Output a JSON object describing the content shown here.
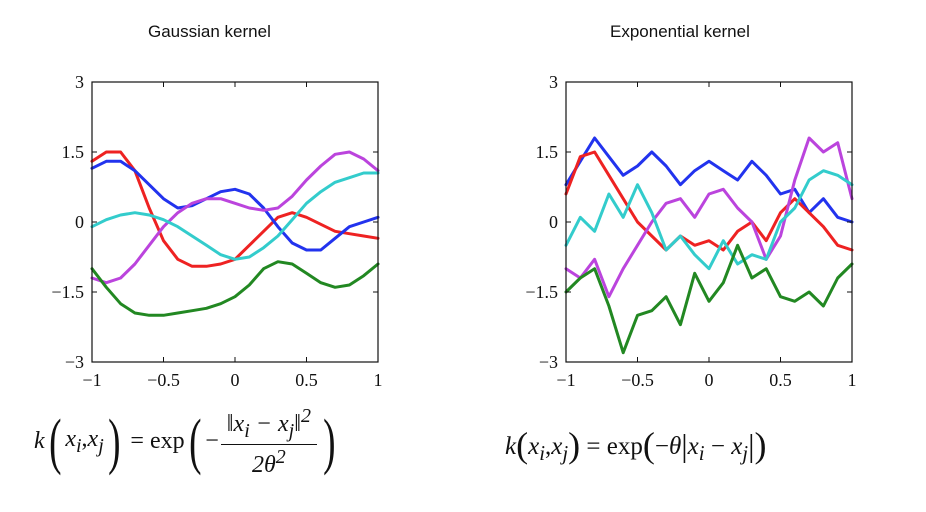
{
  "chart_data": [
    {
      "type": "line",
      "title": "Gaussian kernel",
      "xlim": [
        -1,
        1
      ],
      "ylim": [
        -3,
        3
      ],
      "xticks": [
        "−1",
        "−0.5",
        "0",
        "0.5",
        "1"
      ],
      "yticks": [
        "3",
        "1.5",
        "0",
        "−1.5",
        "−3"
      ],
      "formula": "k(x_i, x_j) = exp(−‖x_i − x_j‖² / 2θ²)",
      "series": [
        {
          "name": "red",
          "color": "#ee2222",
          "x": [
            -1,
            -0.9,
            -0.8,
            -0.7,
            -0.6,
            -0.5,
            -0.4,
            -0.3,
            -0.2,
            -0.1,
            0,
            0.1,
            0.2,
            0.3,
            0.4,
            0.5,
            0.6,
            0.7,
            0.8,
            0.9,
            1
          ],
          "y": [
            1.3,
            1.5,
            1.5,
            1.1,
            0.3,
            -0.4,
            -0.8,
            -0.95,
            -0.95,
            -0.9,
            -0.8,
            -0.5,
            -0.2,
            0.1,
            0.2,
            0.1,
            -0.05,
            -0.2,
            -0.25,
            -0.3,
            -0.35
          ]
        },
        {
          "name": "blue",
          "color": "#2233ee",
          "x": [
            -1,
            -0.9,
            -0.8,
            -0.7,
            -0.6,
            -0.5,
            -0.4,
            -0.3,
            -0.2,
            -0.1,
            0,
            0.1,
            0.2,
            0.3,
            0.4,
            0.5,
            0.6,
            0.7,
            0.8,
            0.9,
            1
          ],
          "y": [
            1.15,
            1.3,
            1.3,
            1.1,
            0.8,
            0.5,
            0.3,
            0.35,
            0.5,
            0.65,
            0.7,
            0.6,
            0.3,
            -0.1,
            -0.45,
            -0.6,
            -0.6,
            -0.35,
            -0.1,
            0.0,
            0.1
          ]
        },
        {
          "name": "magenta",
          "color": "#bb44dd",
          "x": [
            -1,
            -0.9,
            -0.8,
            -0.7,
            -0.6,
            -0.5,
            -0.4,
            -0.3,
            -0.2,
            -0.1,
            0,
            0.1,
            0.2,
            0.3,
            0.4,
            0.5,
            0.6,
            0.7,
            0.8,
            0.9,
            1
          ],
          "y": [
            -1.2,
            -1.3,
            -1.2,
            -0.9,
            -0.5,
            -0.1,
            0.2,
            0.4,
            0.5,
            0.5,
            0.4,
            0.3,
            0.25,
            0.3,
            0.55,
            0.9,
            1.2,
            1.45,
            1.5,
            1.35,
            1.1
          ]
        },
        {
          "name": "cyan",
          "color": "#33cccc",
          "x": [
            -1,
            -0.9,
            -0.8,
            -0.7,
            -0.6,
            -0.5,
            -0.4,
            -0.3,
            -0.2,
            -0.1,
            0,
            0.1,
            0.2,
            0.3,
            0.4,
            0.5,
            0.6,
            0.7,
            0.8,
            0.9,
            1
          ],
          "y": [
            -0.1,
            0.05,
            0.15,
            0.2,
            0.15,
            0.05,
            -0.1,
            -0.3,
            -0.5,
            -0.7,
            -0.8,
            -0.75,
            -0.55,
            -0.3,
            0.05,
            0.4,
            0.65,
            0.85,
            0.95,
            1.05,
            1.05
          ]
        },
        {
          "name": "green",
          "color": "#228822",
          "x": [
            -1,
            -0.9,
            -0.8,
            -0.7,
            -0.6,
            -0.5,
            -0.4,
            -0.3,
            -0.2,
            -0.1,
            0,
            0.1,
            0.2,
            0.3,
            0.4,
            0.5,
            0.6,
            0.7,
            0.8,
            0.9,
            1
          ],
          "y": [
            -1.0,
            -1.4,
            -1.75,
            -1.95,
            -2.0,
            -2.0,
            -1.95,
            -1.9,
            -1.85,
            -1.75,
            -1.6,
            -1.35,
            -1.0,
            -0.85,
            -0.9,
            -1.1,
            -1.3,
            -1.4,
            -1.35,
            -1.15,
            -0.9
          ]
        }
      ]
    },
    {
      "type": "line",
      "title": "Exponential kernel",
      "xlim": [
        -1,
        1
      ],
      "ylim": [
        -3,
        3
      ],
      "xticks": [
        "−1",
        "−0.5",
        "0",
        "0.5",
        "1"
      ],
      "yticks": [
        "3",
        "1.5",
        "0",
        "−1.5",
        "−3"
      ],
      "formula": "k(x_i, x_j) = exp(−θ|x_i − x_j|)",
      "series": [
        {
          "name": "blue",
          "color": "#2233ee",
          "x": [
            -1,
            -0.9,
            -0.8,
            -0.7,
            -0.6,
            -0.5,
            -0.4,
            -0.3,
            -0.2,
            -0.1,
            0,
            0.1,
            0.2,
            0.3,
            0.4,
            0.5,
            0.6,
            0.7,
            0.8,
            0.9,
            1
          ],
          "y": [
            0.8,
            1.3,
            1.8,
            1.4,
            1.0,
            1.2,
            1.5,
            1.2,
            0.8,
            1.1,
            1.3,
            1.1,
            0.9,
            1.3,
            1.0,
            0.6,
            0.7,
            0.2,
            0.5,
            0.1,
            0.0
          ]
        },
        {
          "name": "red",
          "color": "#ee2222",
          "x": [
            -1,
            -0.9,
            -0.8,
            -0.7,
            -0.6,
            -0.5,
            -0.4,
            -0.3,
            -0.2,
            -0.1,
            0,
            0.1,
            0.2,
            0.3,
            0.4,
            0.5,
            0.6,
            0.7,
            0.8,
            0.9,
            1
          ],
          "y": [
            0.6,
            1.4,
            1.5,
            1.0,
            0.5,
            0.0,
            -0.3,
            -0.6,
            -0.3,
            -0.5,
            -0.4,
            -0.6,
            -0.2,
            0.0,
            -0.4,
            0.2,
            0.5,
            0.2,
            -0.1,
            -0.5,
            -0.6
          ]
        },
        {
          "name": "magenta",
          "color": "#bb44dd",
          "x": [
            -1,
            -0.9,
            -0.8,
            -0.7,
            -0.6,
            -0.5,
            -0.4,
            -0.3,
            -0.2,
            -0.1,
            0,
            0.1,
            0.2,
            0.3,
            0.4,
            0.5,
            0.6,
            0.7,
            0.8,
            0.9,
            1
          ],
          "y": [
            -1.0,
            -1.2,
            -0.8,
            -1.6,
            -1.0,
            -0.5,
            0.0,
            0.4,
            0.5,
            0.1,
            0.6,
            0.7,
            0.3,
            0.0,
            -0.8,
            -0.3,
            0.9,
            1.8,
            1.5,
            1.7,
            0.5
          ]
        },
        {
          "name": "cyan",
          "color": "#33cccc",
          "x": [
            -1,
            -0.9,
            -0.8,
            -0.7,
            -0.6,
            -0.5,
            -0.4,
            -0.3,
            -0.2,
            -0.1,
            0,
            0.1,
            0.2,
            0.3,
            0.4,
            0.5,
            0.6,
            0.7,
            0.8,
            0.9,
            1
          ],
          "y": [
            -0.5,
            0.1,
            -0.2,
            0.6,
            0.1,
            0.8,
            0.2,
            -0.6,
            -0.3,
            -0.7,
            -1.0,
            -0.4,
            -0.9,
            -0.7,
            -0.8,
            0.0,
            0.3,
            0.9,
            1.1,
            1.0,
            0.8
          ]
        },
        {
          "name": "green",
          "color": "#228822",
          "x": [
            -1,
            -0.9,
            -0.8,
            -0.7,
            -0.6,
            -0.5,
            -0.4,
            -0.3,
            -0.2,
            -0.1,
            0,
            0.1,
            0.2,
            0.3,
            0.4,
            0.5,
            0.6,
            0.7,
            0.8,
            0.9,
            1
          ],
          "y": [
            -1.5,
            -1.2,
            -1.0,
            -1.8,
            -2.8,
            -2.0,
            -1.9,
            -1.6,
            -2.2,
            -1.1,
            -1.7,
            -1.3,
            -0.5,
            -1.2,
            -1.0,
            -1.6,
            -1.7,
            -1.5,
            -1.8,
            -1.2,
            -0.9
          ]
        }
      ]
    }
  ]
}
